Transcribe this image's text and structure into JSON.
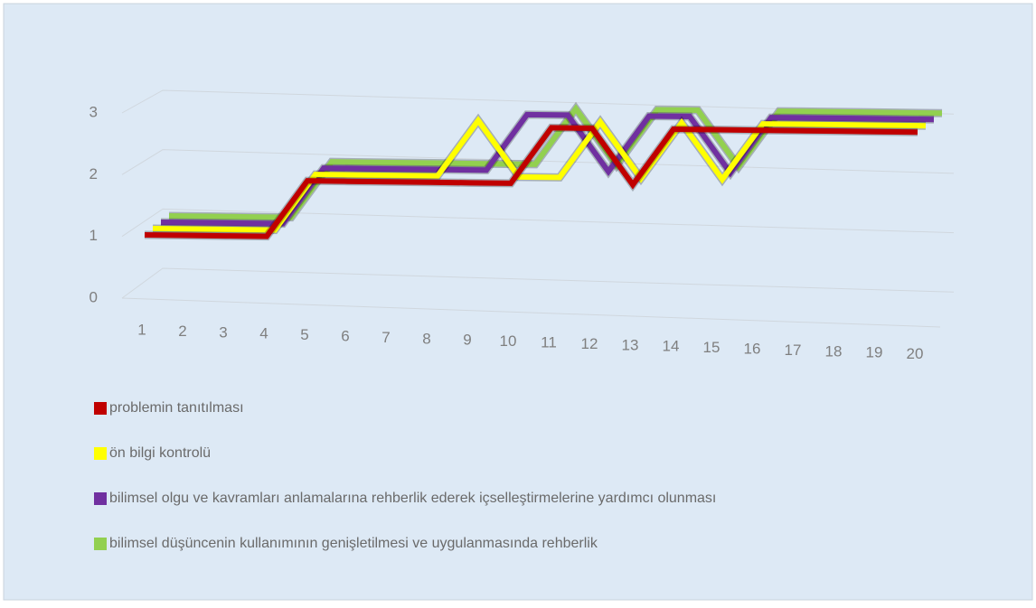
{
  "chart_data": {
    "type": "line3d",
    "categories": [
      "1",
      "2",
      "3",
      "4",
      "5",
      "6",
      "7",
      "8",
      "9",
      "10",
      "11",
      "12",
      "13",
      "14",
      "15",
      "16",
      "17",
      "18",
      "19",
      "20"
    ],
    "series": [
      {
        "name": "problemin tanıtılması",
        "color": "#c00000",
        "values": [
          1,
          1,
          1,
          1,
          2,
          2,
          2,
          2,
          2,
          2,
          3,
          3,
          2,
          3,
          3,
          3,
          3,
          3,
          3,
          3
        ]
      },
      {
        "name": "ön bilgi kontrolü",
        "color": "#ffff00",
        "values": [
          1,
          1,
          1,
          1,
          2,
          2,
          2,
          2,
          3,
          2,
          2,
          3,
          2,
          3,
          2,
          3,
          3,
          3,
          3,
          3
        ]
      },
      {
        "name": "bilimsel olgu ve kavramları anlamalarına rehberlik ederek içselleştirmelerine yardımcı olunması",
        "color": "#7030a0",
        "values": [
          1,
          1,
          1,
          1,
          2,
          2,
          2,
          2,
          2,
          3,
          3,
          2,
          3,
          3,
          2,
          3,
          3,
          3,
          3,
          3
        ]
      },
      {
        "name": "bilimsel düşüncenin kullanımının genişletilmesi ve uygulanmasında rehberlik",
        "color": "#92d050",
        "values": [
          1,
          1,
          1,
          1,
          2,
          2,
          2,
          2,
          2,
          2,
          3,
          2,
          3,
          3,
          2,
          3,
          3,
          3,
          3,
          3
        ]
      }
    ],
    "ylim": [
      0,
      3
    ],
    "yticks": [
      0,
      1,
      2,
      3
    ],
    "grid": true,
    "legend": "bottom"
  }
}
